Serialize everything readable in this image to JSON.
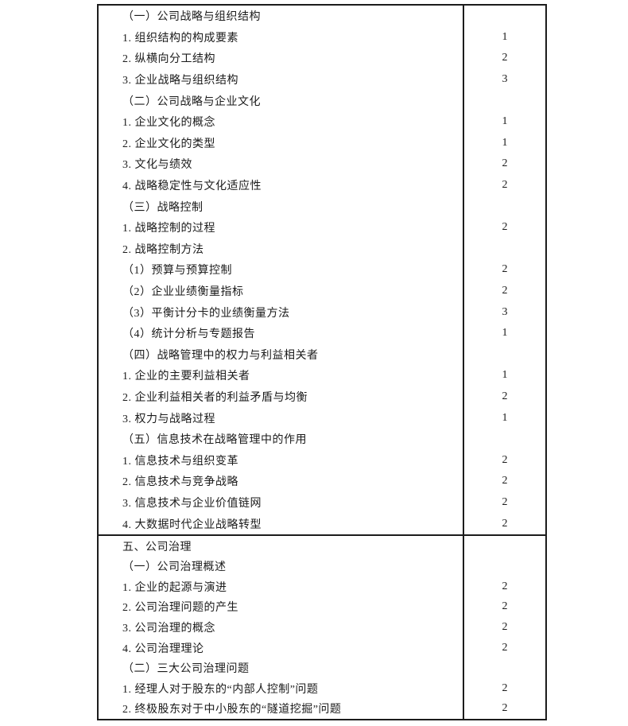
{
  "document": {
    "kind": "exam-syllabus-table",
    "text_color": "#1b1b1b",
    "border_color": "#1c1c1c",
    "background_color": "#ffffff",
    "table": {
      "columns": [
        "content",
        "level"
      ],
      "sections": [
        {
          "rows": [
            {
              "text": "（一）公司战略与组织结构",
              "level": ""
            },
            {
              "text": "1. 组织结构的构成要素",
              "level": "1"
            },
            {
              "text": "2. 纵横向分工结构",
              "level": "2"
            },
            {
              "text": "3. 企业战略与组织结构",
              "level": "3"
            },
            {
              "text": "（二）公司战略与企业文化",
              "level": ""
            },
            {
              "text": "1. 企业文化的概念",
              "level": "1"
            },
            {
              "text": "2. 企业文化的类型",
              "level": "1"
            },
            {
              "text": "3. 文化与绩效",
              "level": "2"
            },
            {
              "text": "4. 战略稳定性与文化适应性",
              "level": "2"
            },
            {
              "text": "（三）战略控制",
              "level": ""
            },
            {
              "text": "1. 战略控制的过程",
              "level": "2"
            },
            {
              "text": "2. 战略控制方法",
              "level": ""
            },
            {
              "text": "（1）预算与预算控制",
              "level": "2"
            },
            {
              "text": "（2）企业业绩衡量指标",
              "level": "2"
            },
            {
              "text": "（3）平衡计分卡的业绩衡量方法",
              "level": "3"
            },
            {
              "text": "（4）统计分析与专题报告",
              "level": "1"
            },
            {
              "text": "（四）战略管理中的权力与利益相关者",
              "level": ""
            },
            {
              "text": "1. 企业的主要利益相关者",
              "level": "1"
            },
            {
              "text": "2. 企业利益相关者的利益矛盾与均衡",
              "level": "2"
            },
            {
              "text": "3. 权力与战略过程",
              "level": "1"
            },
            {
              "text": "（五）信息技术在战略管理中的作用",
              "level": ""
            },
            {
              "text": "1. 信息技术与组织变革",
              "level": "2"
            },
            {
              "text": "2. 信息技术与竞争战略",
              "level": "2"
            },
            {
              "text": "3. 信息技术与企业价值链网",
              "level": "2"
            },
            {
              "text": "4. 大数据时代企业战略转型",
              "level": "2"
            }
          ]
        },
        {
          "rows": [
            {
              "text": "五、公司治理",
              "level": ""
            },
            {
              "text": "（一）公司治理概述",
              "level": ""
            },
            {
              "text": "1. 企业的起源与演进",
              "level": "2"
            },
            {
              "text": "2. 公司治理问题的产生",
              "level": "2"
            },
            {
              "text": "3. 公司治理的概念",
              "level": "2"
            },
            {
              "text": "4. 公司治理理论",
              "level": "2"
            },
            {
              "text": "（二）三大公司治理问题",
              "level": ""
            },
            {
              "text": "1. 经理人对于股东的“内部人控制”问题",
              "level": "2"
            },
            {
              "text": "2. 终极股东对于中小股东的“隧道挖掘”问题",
              "level": "2"
            }
          ]
        }
      ]
    }
  }
}
